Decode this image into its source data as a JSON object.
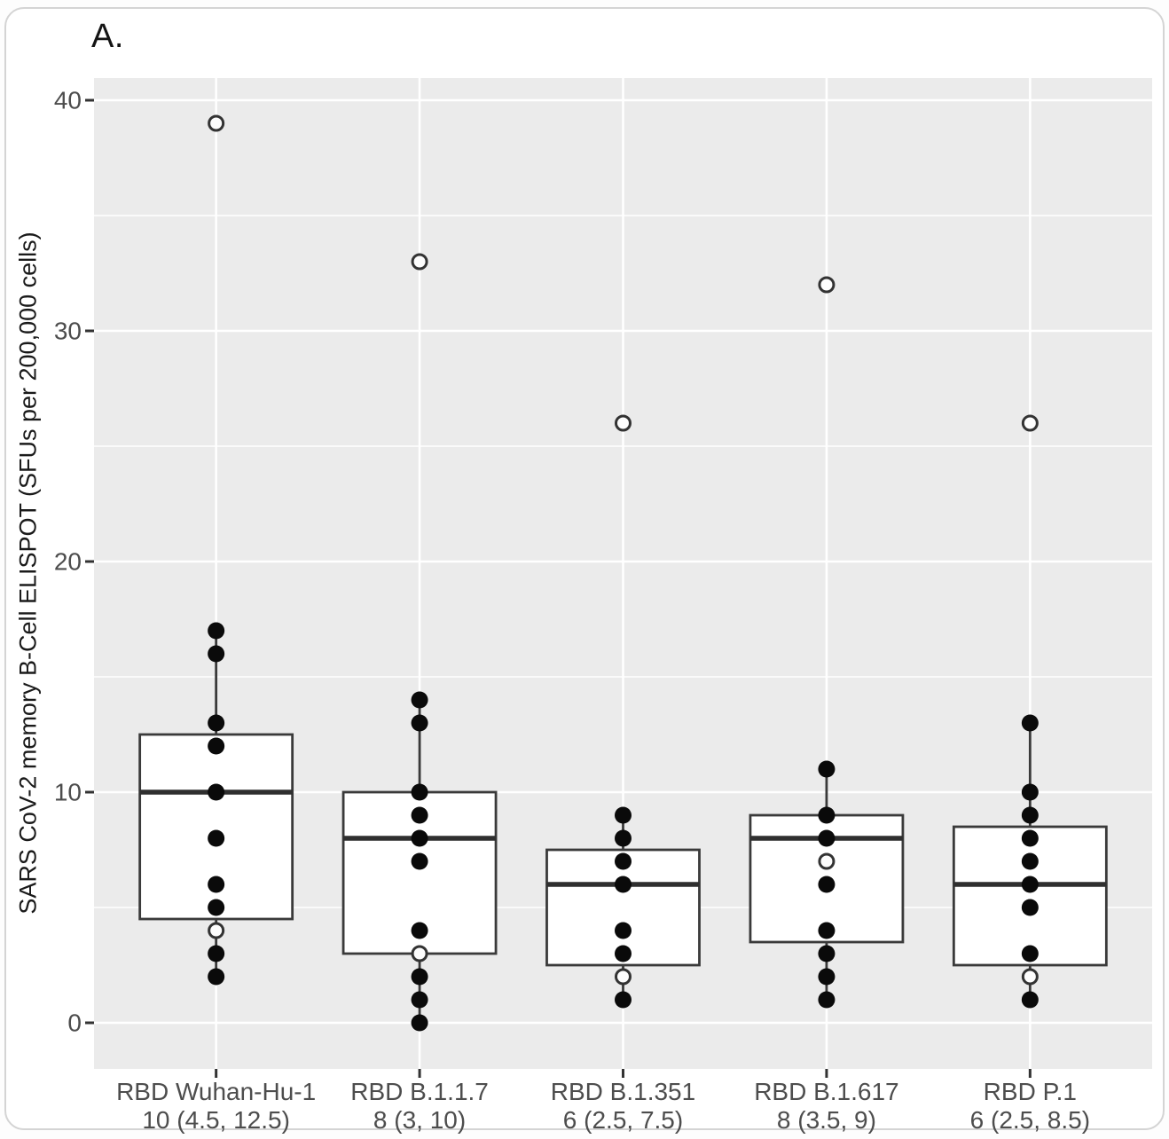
{
  "panel_label": "A.",
  "chart_data": {
    "type": "boxplot",
    "title": "A.",
    "ylabel": "SARS CoV-2 memory B-Cell ELISPOT (SFUs per 200,000 cells)",
    "xlabel": "",
    "ylim": [
      -2,
      41
    ],
    "yticks_major": [
      0,
      10,
      20,
      30,
      40
    ],
    "yticks_minor": [
      5,
      15,
      25,
      35
    ],
    "grid": "horizontal major+minor, vertical major at category centers",
    "legend": "none",
    "categories": [
      "RBD Wuhan-Hu-1",
      "RBD B.1.1.7",
      "RBD B.1.351",
      "RBD B.1.617",
      "RBD P.1"
    ],
    "category_stats_labels": [
      "10 (4.5, 12.5)",
      "8 (3, 10)",
      "6 (2.5, 7.5)",
      "8 (3.5, 9)",
      "6 (2.5, 8.5)"
    ],
    "groups": [
      {
        "category": "RBD Wuhan-Hu-1",
        "stats_label": "10 (4.5, 12.5)",
        "median": 10,
        "q1": 4.5,
        "q3": 12.5,
        "whisker_low": 2,
        "whisker_high": 17,
        "points_filled": [
          17,
          16,
          13,
          12,
          10,
          8,
          6,
          5,
          3,
          2
        ],
        "points_open": [
          39,
          4
        ]
      },
      {
        "category": "RBD B.1.1.7",
        "stats_label": "8 (3, 10)",
        "median": 8,
        "q1": 3,
        "q3": 10,
        "whisker_low": 0,
        "whisker_high": 14,
        "points_filled": [
          14,
          13,
          10,
          9,
          8,
          7,
          4,
          2,
          1,
          0
        ],
        "points_open": [
          33,
          3
        ]
      },
      {
        "category": "RBD B.1.351",
        "stats_label": "6 (2.5, 7.5)",
        "median": 6,
        "q1": 2.5,
        "q3": 7.5,
        "whisker_low": 1,
        "whisker_high": 9,
        "points_filled": [
          9,
          8,
          7,
          6,
          4,
          3,
          1
        ],
        "points_open": [
          26,
          2
        ]
      },
      {
        "category": "RBD B.1.617",
        "stats_label": "8 (3.5, 9)",
        "median": 8,
        "q1": 3.5,
        "q3": 9,
        "whisker_low": 1,
        "whisker_high": 11,
        "points_filled": [
          11,
          9,
          8,
          6,
          4,
          3,
          2,
          1
        ],
        "points_open": [
          32,
          7
        ]
      },
      {
        "category": "RBD P.1",
        "stats_label": "6 (2.5, 8.5)",
        "median": 6,
        "q1": 2.5,
        "q3": 8.5,
        "whisker_low": 1,
        "whisker_high": 13,
        "points_filled": [
          13,
          10,
          9,
          8,
          7,
          6,
          5,
          3,
          1
        ],
        "points_open": [
          26,
          2
        ]
      }
    ],
    "colors": {
      "panel_bg": "#ebebeb",
      "grid": "#ffffff",
      "box_fill": "#ffffff",
      "box_border": "#3a3a3a",
      "median": "#2f2f2f",
      "point_fill": "#0a0a0a",
      "open_point_fill": "#fdfdfd",
      "open_point_stroke": "#333333",
      "tick": "#333333",
      "axis_text": "#4d4d4d",
      "title_text": "#141414"
    }
  }
}
